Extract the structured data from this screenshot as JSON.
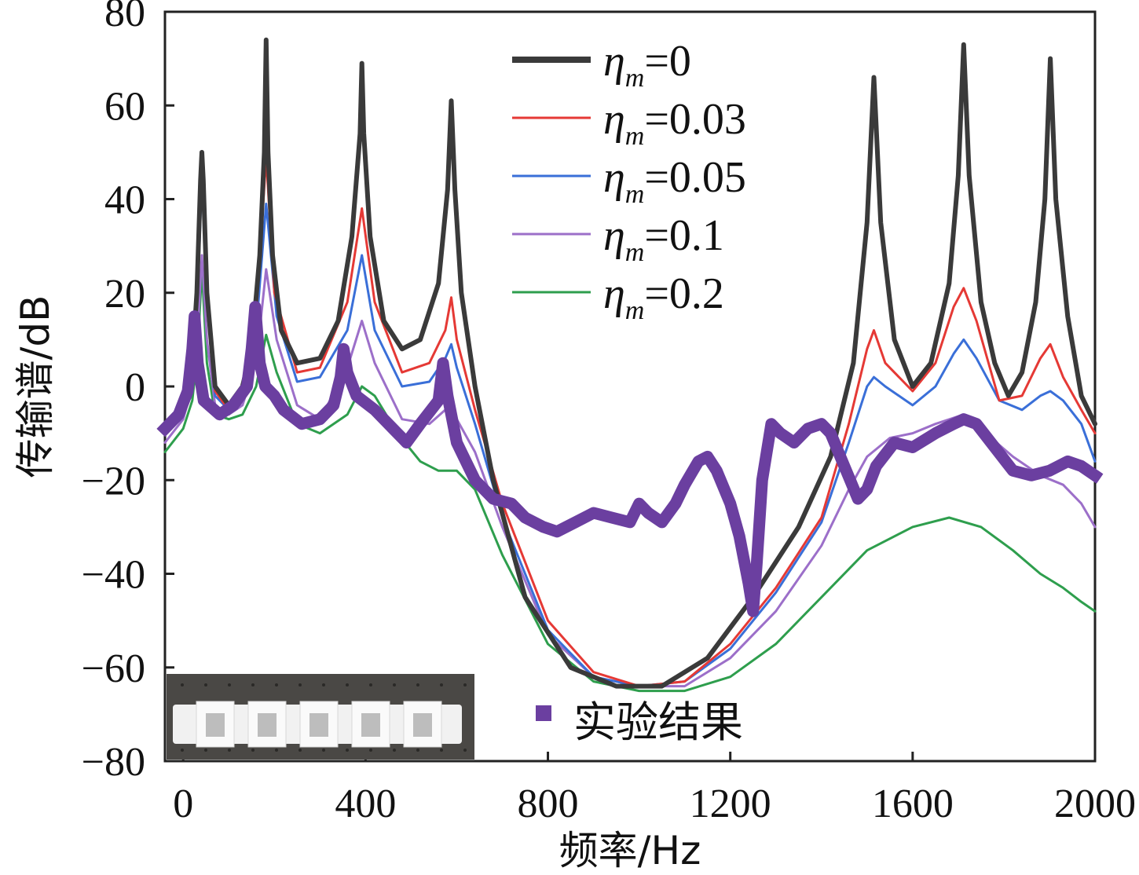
{
  "chart_data": {
    "type": "line",
    "xlabel": "频率/Hz",
    "ylabel": "传输谱/dB",
    "xlim": [
      -40,
      2000
    ],
    "ylim": [
      -80,
      80
    ],
    "xticks": [
      0,
      400,
      800,
      1200,
      1600,
      2000
    ],
    "yticks": [
      80,
      60,
      40,
      20,
      0,
      -20,
      -40,
      -60,
      -80
    ],
    "grid": false,
    "legend_position": "top-center",
    "series": [
      {
        "name": "ηm=0",
        "symbol": "η",
        "subscript": "m",
        "value_text": "=0",
        "color": "#3a3a3a",
        "points": [
          [
            -40,
            -8
          ],
          [
            0,
            -5
          ],
          [
            20,
            5
          ],
          [
            30,
            20
          ],
          [
            38,
            44
          ],
          [
            41,
            50
          ],
          [
            44,
            44
          ],
          [
            52,
            20
          ],
          [
            70,
            0
          ],
          [
            100,
            -4
          ],
          [
            130,
            0
          ],
          [
            150,
            8
          ],
          [
            168,
            28
          ],
          [
            178,
            50
          ],
          [
            182,
            74
          ],
          [
            186,
            50
          ],
          [
            196,
            28
          ],
          [
            215,
            12
          ],
          [
            250,
            5
          ],
          [
            300,
            6
          ],
          [
            340,
            14
          ],
          [
            370,
            32
          ],
          [
            388,
            54
          ],
          [
            392,
            69
          ],
          [
            396,
            54
          ],
          [
            410,
            32
          ],
          [
            440,
            14
          ],
          [
            480,
            8
          ],
          [
            520,
            10
          ],
          [
            560,
            22
          ],
          [
            580,
            42
          ],
          [
            588,
            61
          ],
          [
            596,
            42
          ],
          [
            610,
            20
          ],
          [
            640,
            0
          ],
          [
            680,
            -20
          ],
          [
            750,
            -45
          ],
          [
            850,
            -60
          ],
          [
            950,
            -64
          ],
          [
            1050,
            -64
          ],
          [
            1150,
            -58
          ],
          [
            1250,
            -45
          ],
          [
            1350,
            -30
          ],
          [
            1420,
            -15
          ],
          [
            1470,
            5
          ],
          [
            1500,
            35
          ],
          [
            1515,
            66
          ],
          [
            1530,
            35
          ],
          [
            1560,
            10
          ],
          [
            1600,
            0
          ],
          [
            1640,
            5
          ],
          [
            1680,
            22
          ],
          [
            1700,
            45
          ],
          [
            1712,
            73
          ],
          [
            1724,
            45
          ],
          [
            1750,
            18
          ],
          [
            1780,
            5
          ],
          [
            1810,
            -2
          ],
          [
            1840,
            3
          ],
          [
            1870,
            18
          ],
          [
            1890,
            40
          ],
          [
            1902,
            70
          ],
          [
            1914,
            40
          ],
          [
            1940,
            15
          ],
          [
            1970,
            -2
          ],
          [
            2000,
            -8
          ]
        ]
      },
      {
        "name": "ηm=0.03",
        "symbol": "η",
        "subscript": "m",
        "value_text": "=0.03",
        "color": "#e53935",
        "points": [
          [
            -40,
            -9
          ],
          [
            0,
            -6
          ],
          [
            20,
            3
          ],
          [
            32,
            22
          ],
          [
            41,
            48
          ],
          [
            50,
            22
          ],
          [
            70,
            -1
          ],
          [
            100,
            -5
          ],
          [
            130,
            -1
          ],
          [
            160,
            15
          ],
          [
            182,
            49
          ],
          [
            200,
            20
          ],
          [
            250,
            3
          ],
          [
            300,
            4
          ],
          [
            360,
            18
          ],
          [
            392,
            38
          ],
          [
            420,
            18
          ],
          [
            480,
            3
          ],
          [
            540,
            5
          ],
          [
            575,
            12
          ],
          [
            588,
            19
          ],
          [
            600,
            10
          ],
          [
            640,
            -5
          ],
          [
            700,
            -25
          ],
          [
            800,
            -50
          ],
          [
            900,
            -61
          ],
          [
            1000,
            -64
          ],
          [
            1100,
            -63
          ],
          [
            1200,
            -55
          ],
          [
            1300,
            -43
          ],
          [
            1400,
            -28
          ],
          [
            1460,
            -8
          ],
          [
            1500,
            8
          ],
          [
            1515,
            12
          ],
          [
            1540,
            5
          ],
          [
            1600,
            -1
          ],
          [
            1650,
            5
          ],
          [
            1690,
            17
          ],
          [
            1712,
            21
          ],
          [
            1740,
            14
          ],
          [
            1790,
            -3
          ],
          [
            1840,
            -2
          ],
          [
            1880,
            6
          ],
          [
            1902,
            9
          ],
          [
            1930,
            2
          ],
          [
            1970,
            -5
          ],
          [
            2000,
            -10
          ]
        ]
      },
      {
        "name": "ηm=0.05",
        "symbol": "η",
        "subscript": "m",
        "value_text": "=0.05",
        "color": "#3a6fd8",
        "points": [
          [
            -40,
            -10
          ],
          [
            0,
            -6
          ],
          [
            20,
            2
          ],
          [
            32,
            20
          ],
          [
            41,
            45
          ],
          [
            52,
            18
          ],
          [
            70,
            -2
          ],
          [
            100,
            -5
          ],
          [
            130,
            -2
          ],
          [
            160,
            12
          ],
          [
            182,
            39
          ],
          [
            205,
            15
          ],
          [
            250,
            1
          ],
          [
            300,
            2
          ],
          [
            360,
            12
          ],
          [
            392,
            28
          ],
          [
            420,
            12
          ],
          [
            480,
            0
          ],
          [
            540,
            1
          ],
          [
            575,
            6
          ],
          [
            588,
            9
          ],
          [
            600,
            4
          ],
          [
            640,
            -8
          ],
          [
            700,
            -28
          ],
          [
            800,
            -52
          ],
          [
            900,
            -62
          ],
          [
            1000,
            -64
          ],
          [
            1100,
            -63
          ],
          [
            1200,
            -56
          ],
          [
            1300,
            -44
          ],
          [
            1400,
            -29
          ],
          [
            1460,
            -12
          ],
          [
            1500,
            0
          ],
          [
            1515,
            2
          ],
          [
            1540,
            0
          ],
          [
            1600,
            -4
          ],
          [
            1650,
            0
          ],
          [
            1690,
            7
          ],
          [
            1712,
            10
          ],
          [
            1740,
            6
          ],
          [
            1790,
            -3
          ],
          [
            1840,
            -5
          ],
          [
            1880,
            -2
          ],
          [
            1902,
            -1
          ],
          [
            1930,
            -3
          ],
          [
            1970,
            -8
          ],
          [
            2000,
            -16
          ]
        ]
      },
      {
        "name": "ηm=0.1",
        "symbol": "η",
        "subscript": "m",
        "value_text": "=0.1",
        "color": "#9c6fc9",
        "points": [
          [
            -40,
            -12
          ],
          [
            0,
            -7
          ],
          [
            20,
            0
          ],
          [
            32,
            12
          ],
          [
            41,
            28
          ],
          [
            52,
            10
          ],
          [
            70,
            -4
          ],
          [
            100,
            -6
          ],
          [
            130,
            -4
          ],
          [
            160,
            5
          ],
          [
            182,
            25
          ],
          [
            205,
            10
          ],
          [
            250,
            -4
          ],
          [
            300,
            -7
          ],
          [
            360,
            4
          ],
          [
            392,
            14
          ],
          [
            420,
            5
          ],
          [
            480,
            -7
          ],
          [
            540,
            -8
          ],
          [
            575,
            -5
          ],
          [
            588,
            -4
          ],
          [
            600,
            -7
          ],
          [
            640,
            -14
          ],
          [
            700,
            -30
          ],
          [
            800,
            -53
          ],
          [
            900,
            -62
          ],
          [
            1000,
            -64
          ],
          [
            1100,
            -64
          ],
          [
            1200,
            -58
          ],
          [
            1300,
            -48
          ],
          [
            1400,
            -34
          ],
          [
            1460,
            -22
          ],
          [
            1500,
            -15
          ],
          [
            1550,
            -11
          ],
          [
            1600,
            -10
          ],
          [
            1650,
            -8
          ],
          [
            1712,
            -6
          ],
          [
            1760,
            -10
          ],
          [
            1820,
            -15
          ],
          [
            1880,
            -19
          ],
          [
            1930,
            -21
          ],
          [
            1970,
            -25
          ],
          [
            2000,
            -30
          ]
        ]
      },
      {
        "name": "ηm=0.2",
        "symbol": "η",
        "subscript": "m",
        "value_text": "=0.2",
        "color": "#2e9e4d",
        "points": [
          [
            -40,
            -14
          ],
          [
            0,
            -9
          ],
          [
            20,
            -3
          ],
          [
            32,
            8
          ],
          [
            41,
            25
          ],
          [
            52,
            5
          ],
          [
            70,
            -6
          ],
          [
            100,
            -7
          ],
          [
            130,
            -6
          ],
          [
            160,
            0
          ],
          [
            182,
            11
          ],
          [
            205,
            3
          ],
          [
            250,
            -8
          ],
          [
            300,
            -10
          ],
          [
            360,
            -6
          ],
          [
            392,
            0
          ],
          [
            420,
            -2
          ],
          [
            470,
            -10
          ],
          [
            520,
            -16
          ],
          [
            560,
            -18
          ],
          [
            600,
            -18
          ],
          [
            640,
            -22
          ],
          [
            700,
            -36
          ],
          [
            800,
            -55
          ],
          [
            900,
            -63
          ],
          [
            1000,
            -65
          ],
          [
            1100,
            -65
          ],
          [
            1200,
            -62
          ],
          [
            1300,
            -55
          ],
          [
            1400,
            -45
          ],
          [
            1500,
            -35
          ],
          [
            1600,
            -30
          ],
          [
            1680,
            -28
          ],
          [
            1750,
            -30
          ],
          [
            1820,
            -35
          ],
          [
            1880,
            -40
          ],
          [
            1930,
            -43
          ],
          [
            1970,
            -46
          ],
          [
            2000,
            -48
          ]
        ]
      },
      {
        "name": "实验结果",
        "color": "#6b3fa0",
        "marker": "square",
        "points": [
          [
            -40,
            -9
          ],
          [
            -10,
            -6
          ],
          [
            10,
            -1
          ],
          [
            20,
            8
          ],
          [
            25,
            15
          ],
          [
            32,
            5
          ],
          [
            45,
            -3
          ],
          [
            80,
            -6
          ],
          [
            110,
            -4
          ],
          [
            140,
            0
          ],
          [
            150,
            8
          ],
          [
            158,
            17
          ],
          [
            168,
            5
          ],
          [
            180,
            0
          ],
          [
            200,
            -2
          ],
          [
            220,
            -5
          ],
          [
            260,
            -8
          ],
          [
            300,
            -7
          ],
          [
            330,
            -4
          ],
          [
            345,
            2
          ],
          [
            352,
            8
          ],
          [
            360,
            3
          ],
          [
            380,
            -2
          ],
          [
            420,
            -5
          ],
          [
            460,
            -9
          ],
          [
            490,
            -12
          ],
          [
            520,
            -8
          ],
          [
            560,
            -3
          ],
          [
            570,
            5
          ],
          [
            580,
            -2
          ],
          [
            600,
            -12
          ],
          [
            640,
            -20
          ],
          [
            680,
            -24
          ],
          [
            720,
            -25
          ],
          [
            750,
            -28
          ],
          [
            790,
            -30
          ],
          [
            820,
            -31
          ],
          [
            860,
            -29
          ],
          [
            900,
            -27
          ],
          [
            940,
            -28
          ],
          [
            980,
            -29
          ],
          [
            1000,
            -25
          ],
          [
            1020,
            -27
          ],
          [
            1050,
            -29
          ],
          [
            1080,
            -25
          ],
          [
            1100,
            -21
          ],
          [
            1130,
            -16
          ],
          [
            1150,
            -15
          ],
          [
            1170,
            -18
          ],
          [
            1200,
            -25
          ],
          [
            1220,
            -32
          ],
          [
            1240,
            -42
          ],
          [
            1250,
            -48
          ],
          [
            1258,
            -38
          ],
          [
            1270,
            -20
          ],
          [
            1290,
            -8
          ],
          [
            1310,
            -10
          ],
          [
            1340,
            -12
          ],
          [
            1370,
            -9
          ],
          [
            1400,
            -8
          ],
          [
            1420,
            -10
          ],
          [
            1450,
            -17
          ],
          [
            1480,
            -24
          ],
          [
            1500,
            -22
          ],
          [
            1520,
            -17
          ],
          [
            1560,
            -12
          ],
          [
            1600,
            -13
          ],
          [
            1650,
            -10
          ],
          [
            1690,
            -8
          ],
          [
            1712,
            -7
          ],
          [
            1740,
            -8
          ],
          [
            1780,
            -13
          ],
          [
            1820,
            -18
          ],
          [
            1860,
            -19
          ],
          [
            1900,
            -18
          ],
          [
            1940,
            -16
          ],
          [
            1970,
            -17
          ],
          [
            2000,
            -19
          ]
        ]
      }
    ]
  }
}
